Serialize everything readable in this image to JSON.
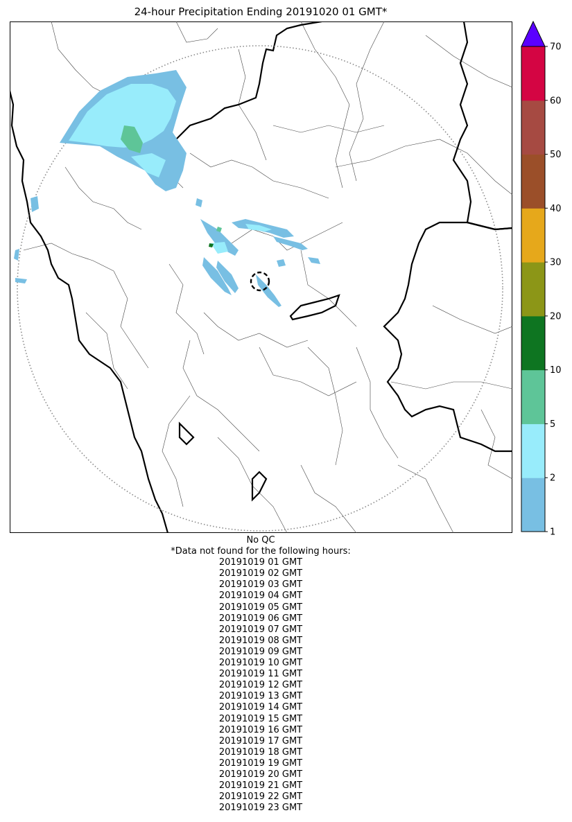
{
  "title": "24-hour Precipitation Ending 20191020 01 GMT*",
  "map": {
    "extend_color": "#5a00ff",
    "precip_colors": {
      "p1_2": "#78bfe3",
      "p2_5": "#98ecfb",
      "p5_10": "#5ec598",
      "p10_20": "#0e7521"
    }
  },
  "colorbar": {
    "boundaries": [
      1,
      2,
      5,
      10,
      20,
      30,
      40,
      50,
      60,
      70
    ],
    "tick_labels": [
      "1",
      "2",
      "5",
      "10",
      "20",
      "30",
      "40",
      "50",
      "60",
      "70"
    ],
    "colors": [
      "#78bfe3",
      "#98ecfb",
      "#5ec598",
      "#0e7521",
      "#8c9617",
      "#e6a81b",
      "#9b4f29",
      "#a64a42",
      "#d40543"
    ],
    "extend_color": "#5a00ff"
  },
  "notes": {
    "qc": "No QC",
    "missing_header": "*Data not found for the following hours:",
    "missing_hours": [
      "20191019 01 GMT",
      "20191019 02 GMT",
      "20191019 03 GMT",
      "20191019 04 GMT",
      "20191019 05 GMT",
      "20191019 06 GMT",
      "20191019 07 GMT",
      "20191019 08 GMT",
      "20191019 09 GMT",
      "20191019 10 GMT",
      "20191019 11 GMT",
      "20191019 12 GMT",
      "20191019 13 GMT",
      "20191019 14 GMT",
      "20191019 15 GMT",
      "20191019 16 GMT",
      "20191019 17 GMT",
      "20191019 18 GMT",
      "20191019 19 GMT",
      "20191019 20 GMT",
      "20191019 21 GMT",
      "20191019 22 GMT",
      "20191019 23 GMT"
    ]
  }
}
